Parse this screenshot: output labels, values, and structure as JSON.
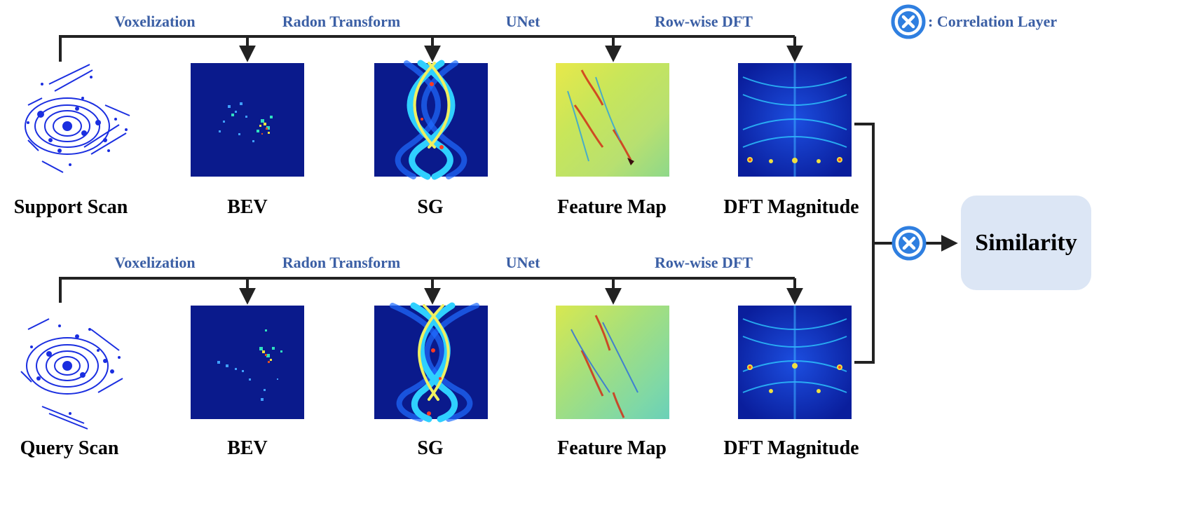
{
  "colors": {
    "step_label": "#3b5fa5",
    "line": "#000000",
    "correlation_symbol": "#2f7fe0",
    "similarity_box": "#dce6f5"
  },
  "legend": {
    "symbol": "correlation-operator-icon",
    "text": ": Correlation Layer"
  },
  "steps": {
    "voxelization": "Voxelization",
    "radon": "Radon Transform",
    "unet": "UNet",
    "dft": "Row-wise DFT"
  },
  "rows": [
    {
      "scan": "Support Scan",
      "bev": "BEV",
      "sg": "SG",
      "feature": "Feature Map",
      "magnitude": "DFT Magnitude"
    },
    {
      "scan": "Query Scan",
      "bev": "BEV",
      "sg": "SG",
      "feature": "Feature Map",
      "magnitude": "DFT Magnitude"
    }
  ],
  "output": {
    "label": "Similarity"
  }
}
